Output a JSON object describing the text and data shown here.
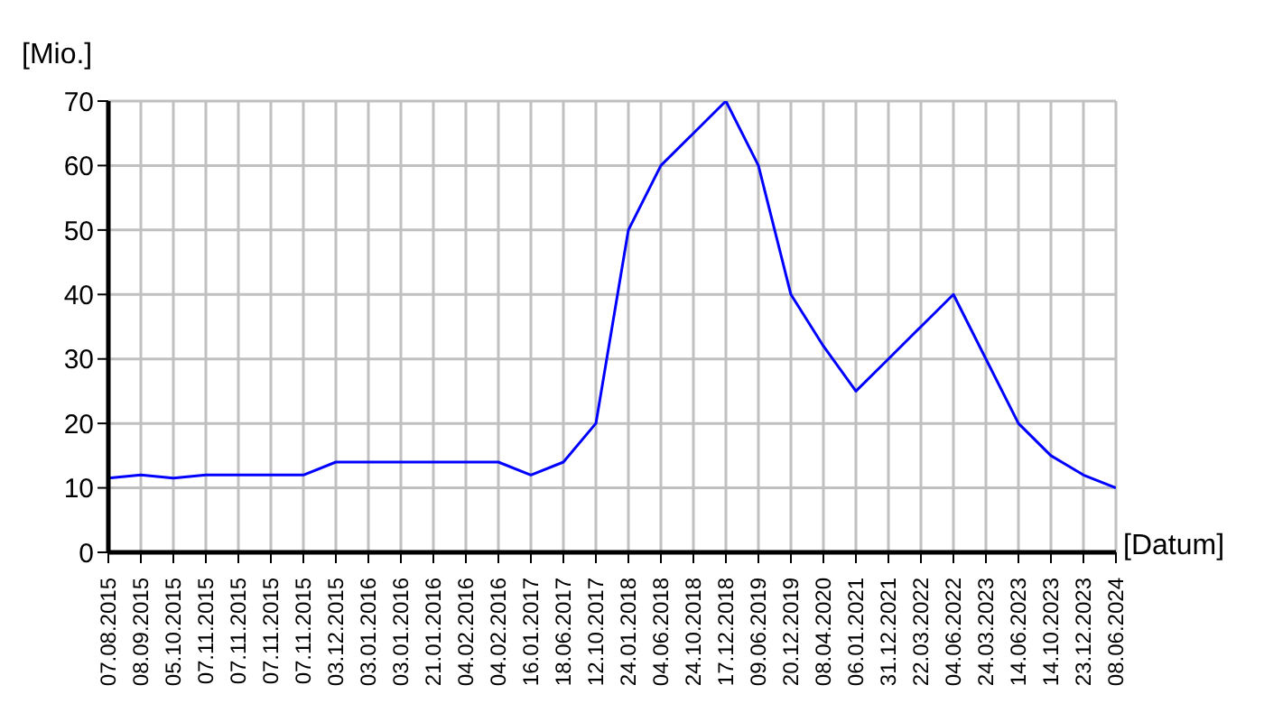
{
  "chart_data": {
    "type": "line",
    "ylabel": "[Mio.]",
    "xlabel": "[Datum]",
    "categories": [
      "07.08.2015",
      "08.09.2015",
      "05.10.2015",
      "07.11.2015",
      "07.11.2015",
      "07.11.2015",
      "07.11.2015",
      "03.12.2015",
      "03.01.2016",
      "03.01.2016",
      "21.01.2016",
      "04.02.2016",
      "04.02.2016",
      "16.01.2017",
      "18.06.2017",
      "12.10.2017",
      "24.01.2018",
      "04.06.2018",
      "24.10.2018",
      "17.12.2018",
      "09.06.2019",
      "20.12.2019",
      "08.04.2020",
      "06.01.2021",
      "31.12.2021",
      "22.03.2022",
      "04.06.2022",
      "24.03.2023",
      "14.06.2023",
      "14.10.2023",
      "23.12.2023",
      "08.06.2024"
    ],
    "series": [
      {
        "color": "#0000ff",
        "values": [
          11.5,
          12,
          11.5,
          12,
          12,
          12,
          12,
          14,
          14,
          14,
          14,
          14,
          14,
          12,
          14,
          20,
          50,
          60,
          65,
          70,
          60,
          40,
          32,
          25,
          30,
          35,
          40,
          30,
          20,
          15,
          12,
          10
        ]
      }
    ],
    "ylim": [
      0,
      70
    ],
    "yticks": [
      0,
      10,
      20,
      30,
      40,
      50,
      60,
      70
    ],
    "grid": true,
    "marker": "none",
    "line_style": "solid"
  }
}
